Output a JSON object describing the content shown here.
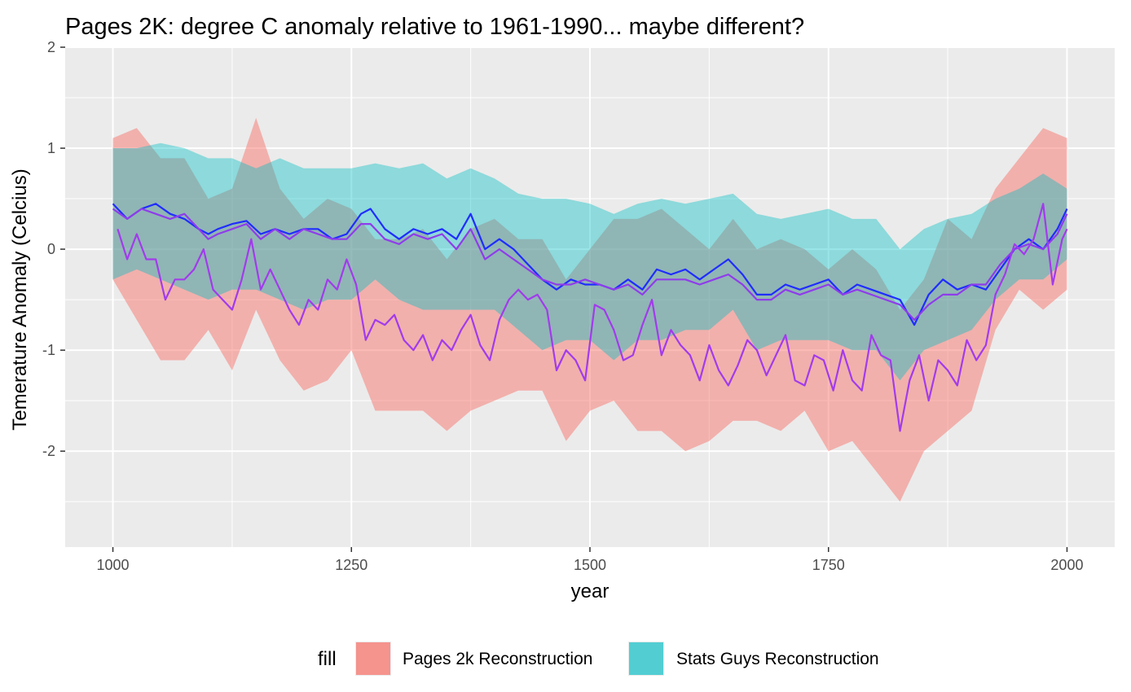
{
  "chart_data": {
    "type": "area",
    "title": "Pages 2K: degree C anomaly relative to 1961-1990... maybe different?",
    "xlabel": "year",
    "ylabel": "Temerature Anomaly (Celcius)",
    "xlim": [
      950,
      2050
    ],
    "ylim": [
      -2.95,
      2.0
    ],
    "x_ticks": [
      1000,
      1250,
      1500,
      1750,
      2000
    ],
    "x_tick_labels": [
      "1000",
      "1250",
      "1500",
      "1750",
      "2000"
    ],
    "y_ticks": [
      -2,
      -1,
      0,
      1,
      2
    ],
    "y_tick_labels": [
      "-2",
      "-1",
      "0",
      "1",
      "2"
    ],
    "grid": true,
    "legend": {
      "position": "bottom",
      "title": "fill",
      "entries": [
        {
          "label": "Pages 2k Reconstruction",
          "color": "#F8766D"
        },
        {
          "label": "Stats Guys Reconstruction",
          "color": "#00BFC4"
        }
      ]
    },
    "bands": [
      {
        "name": "Pages 2k Reconstruction",
        "color": "#F8766D",
        "opacity": 0.5,
        "x": [
          1000,
          1025,
          1050,
          1075,
          1100,
          1125,
          1150,
          1175,
          1200,
          1225,
          1250,
          1275,
          1300,
          1325,
          1350,
          1375,
          1400,
          1425,
          1450,
          1475,
          1500,
          1525,
          1550,
          1575,
          1600,
          1625,
          1650,
          1675,
          1700,
          1725,
          1750,
          1775,
          1800,
          1825,
          1850,
          1875,
          1900,
          1925,
          1950,
          1975,
          2000
        ],
        "lower": [
          -0.3,
          -0.7,
          -1.1,
          -1.1,
          -0.8,
          -1.2,
          -0.6,
          -1.1,
          -1.4,
          -1.3,
          -1.0,
          -1.6,
          -1.6,
          -1.6,
          -1.8,
          -1.6,
          -1.5,
          -1.4,
          -1.4,
          -1.9,
          -1.6,
          -1.5,
          -1.8,
          -1.8,
          -2.0,
          -1.9,
          -1.7,
          -1.7,
          -1.8,
          -1.6,
          -2.0,
          -1.9,
          -2.2,
          -2.5,
          -2.0,
          -1.8,
          -1.6,
          -0.8,
          -0.4,
          -0.6,
          -0.4
        ],
        "upper": [
          1.1,
          1.2,
          0.9,
          0.9,
          0.5,
          0.6,
          1.3,
          0.6,
          0.3,
          0.5,
          0.4,
          0.1,
          0.1,
          0.2,
          -0.1,
          0.2,
          0.3,
          0.1,
          0.1,
          -0.3,
          0.0,
          0.3,
          0.3,
          0.4,
          0.2,
          0.0,
          0.3,
          0.0,
          0.1,
          0.0,
          -0.2,
          0.0,
          -0.2,
          -0.6,
          -0.3,
          0.3,
          0.1,
          0.6,
          0.9,
          1.2,
          1.1
        ]
      },
      {
        "name": "Stats Guys Reconstruction",
        "color": "#00BFC4",
        "opacity": 0.4,
        "x": [
          1000,
          1025,
          1050,
          1075,
          1100,
          1125,
          1150,
          1175,
          1200,
          1225,
          1250,
          1275,
          1300,
          1325,
          1350,
          1375,
          1400,
          1425,
          1450,
          1475,
          1500,
          1525,
          1550,
          1575,
          1600,
          1625,
          1650,
          1675,
          1700,
          1725,
          1750,
          1775,
          1800,
          1825,
          1850,
          1875,
          1900,
          1925,
          1950,
          1975,
          2000
        ],
        "lower": [
          -0.3,
          -0.2,
          -0.3,
          -0.4,
          -0.5,
          -0.4,
          -0.4,
          -0.5,
          -0.6,
          -0.5,
          -0.5,
          -0.3,
          -0.5,
          -0.6,
          -0.6,
          -0.6,
          -0.6,
          -0.8,
          -1.0,
          -0.9,
          -0.9,
          -1.1,
          -0.9,
          -0.9,
          -0.8,
          -0.8,
          -0.6,
          -1.0,
          -0.9,
          -0.9,
          -0.9,
          -1.0,
          -1.0,
          -1.3,
          -1.0,
          -0.9,
          -0.8,
          -0.5,
          -0.3,
          -0.3,
          -0.1
        ],
        "upper": [
          1.0,
          1.0,
          1.05,
          1.0,
          0.9,
          0.9,
          0.8,
          0.9,
          0.8,
          0.8,
          0.8,
          0.85,
          0.8,
          0.85,
          0.7,
          0.8,
          0.7,
          0.55,
          0.5,
          0.5,
          0.45,
          0.35,
          0.45,
          0.5,
          0.45,
          0.5,
          0.55,
          0.35,
          0.3,
          0.35,
          0.4,
          0.3,
          0.3,
          0.0,
          0.2,
          0.3,
          0.35,
          0.5,
          0.6,
          0.75,
          0.6
        ]
      }
    ],
    "series": [
      {
        "color": "#1F2DFF",
        "x": [
          1000,
          1015,
          1030,
          1045,
          1060,
          1075,
          1090,
          1100,
          1110,
          1125,
          1140,
          1155,
          1170,
          1185,
          1200,
          1215,
          1230,
          1245,
          1260,
          1270,
          1285,
          1300,
          1315,
          1330,
          1345,
          1360,
          1375,
          1390,
          1405,
          1420,
          1435,
          1450,
          1465,
          1480,
          1495,
          1510,
          1525,
          1540,
          1555,
          1570,
          1585,
          1600,
          1615,
          1630,
          1645,
          1660,
          1675,
          1690,
          1705,
          1720,
          1735,
          1750,
          1765,
          1780,
          1795,
          1810,
          1825,
          1840,
          1855,
          1870,
          1885,
          1900,
          1915,
          1930,
          1945,
          1960,
          1975,
          1990,
          2000
        ],
        "y": [
          0.45,
          0.3,
          0.4,
          0.45,
          0.35,
          0.3,
          0.2,
          0.15,
          0.2,
          0.25,
          0.28,
          0.15,
          0.2,
          0.15,
          0.2,
          0.2,
          0.1,
          0.15,
          0.35,
          0.4,
          0.2,
          0.1,
          0.2,
          0.15,
          0.2,
          0.1,
          0.35,
          0.0,
          0.1,
          0.0,
          -0.15,
          -0.3,
          -0.4,
          -0.3,
          -0.35,
          -0.35,
          -0.4,
          -0.3,
          -0.4,
          -0.2,
          -0.25,
          -0.2,
          -0.3,
          -0.2,
          -0.1,
          -0.25,
          -0.45,
          -0.45,
          -0.35,
          -0.4,
          -0.35,
          -0.3,
          -0.45,
          -0.35,
          -0.4,
          -0.45,
          -0.5,
          -0.75,
          -0.45,
          -0.3,
          -0.4,
          -0.35,
          -0.4,
          -0.2,
          0.0,
          0.1,
          0.0,
          0.2,
          0.4
        ]
      },
      {
        "color": "#8F3CEB",
        "x": [
          1000,
          1015,
          1030,
          1045,
          1060,
          1075,
          1090,
          1100,
          1110,
          1125,
          1140,
          1155,
          1170,
          1185,
          1200,
          1215,
          1230,
          1245,
          1260,
          1270,
          1285,
          1300,
          1315,
          1330,
          1345,
          1360,
          1375,
          1390,
          1405,
          1420,
          1435,
          1450,
          1465,
          1480,
          1495,
          1510,
          1525,
          1540,
          1555,
          1570,
          1585,
          1600,
          1615,
          1630,
          1645,
          1660,
          1675,
          1690,
          1705,
          1720,
          1735,
          1750,
          1765,
          1780,
          1795,
          1810,
          1825,
          1840,
          1855,
          1870,
          1885,
          1900,
          1915,
          1930,
          1945,
          1960,
          1975,
          1990,
          2000
        ],
        "y": [
          0.4,
          0.3,
          0.4,
          0.35,
          0.3,
          0.35,
          0.2,
          0.1,
          0.15,
          0.2,
          0.25,
          0.1,
          0.2,
          0.1,
          0.2,
          0.15,
          0.1,
          0.1,
          0.25,
          0.25,
          0.1,
          0.05,
          0.15,
          0.1,
          0.15,
          0.0,
          0.2,
          -0.1,
          0.0,
          -0.1,
          -0.2,
          -0.3,
          -0.35,
          -0.35,
          -0.3,
          -0.35,
          -0.4,
          -0.35,
          -0.45,
          -0.3,
          -0.3,
          -0.3,
          -0.35,
          -0.3,
          -0.25,
          -0.35,
          -0.5,
          -0.5,
          -0.4,
          -0.45,
          -0.4,
          -0.35,
          -0.45,
          -0.4,
          -0.45,
          -0.5,
          -0.55,
          -0.7,
          -0.55,
          -0.45,
          -0.45,
          -0.35,
          -0.35,
          -0.15,
          0.0,
          0.05,
          0.0,
          0.15,
          0.35
        ]
      },
      {
        "color": "#A23BEC",
        "x": [
          1005,
          1015,
          1025,
          1035,
          1045,
          1055,
          1065,
          1075,
          1085,
          1095,
          1105,
          1115,
          1125,
          1135,
          1145,
          1155,
          1165,
          1175,
          1185,
          1195,
          1205,
          1215,
          1225,
          1235,
          1245,
          1255,
          1265,
          1275,
          1285,
          1295,
          1305,
          1315,
          1325,
          1335,
          1345,
          1355,
          1365,
          1375,
          1385,
          1395,
          1405,
          1415,
          1425,
          1435,
          1445,
          1455,
          1465,
          1475,
          1485,
          1495,
          1505,
          1515,
          1525,
          1535,
          1545,
          1555,
          1565,
          1575,
          1585,
          1595,
          1605,
          1615,
          1625,
          1635,
          1645,
          1655,
          1665,
          1675,
          1685,
          1695,
          1705,
          1715,
          1725,
          1735,
          1745,
          1755,
          1765,
          1775,
          1785,
          1795,
          1805,
          1815,
          1825,
          1835,
          1845,
          1855,
          1865,
          1875,
          1885,
          1895,
          1905,
          1915,
          1925,
          1935,
          1945,
          1955,
          1965,
          1975,
          1985,
          1995,
          2000
        ],
        "y": [
          0.2,
          -0.1,
          0.15,
          -0.1,
          -0.1,
          -0.5,
          -0.3,
          -0.3,
          -0.2,
          0.0,
          -0.4,
          -0.5,
          -0.6,
          -0.3,
          0.1,
          -0.4,
          -0.2,
          -0.4,
          -0.6,
          -0.75,
          -0.5,
          -0.6,
          -0.3,
          -0.4,
          -0.1,
          -0.35,
          -0.9,
          -0.7,
          -0.75,
          -0.65,
          -0.9,
          -1.0,
          -0.85,
          -1.1,
          -0.9,
          -1.0,
          -0.8,
          -0.65,
          -0.95,
          -1.1,
          -0.7,
          -0.5,
          -0.4,
          -0.5,
          -0.45,
          -0.6,
          -1.2,
          -1.0,
          -1.1,
          -1.3,
          -0.55,
          -0.6,
          -0.8,
          -1.1,
          -1.05,
          -0.75,
          -0.5,
          -1.05,
          -0.8,
          -0.95,
          -1.05,
          -1.3,
          -0.95,
          -1.2,
          -1.35,
          -1.15,
          -0.9,
          -1.0,
          -1.25,
          -1.05,
          -0.85,
          -1.3,
          -1.35,
          -1.05,
          -1.1,
          -1.4,
          -1.0,
          -1.3,
          -1.4,
          -0.85,
          -1.05,
          -1.1,
          -1.8,
          -1.3,
          -1.05,
          -1.5,
          -1.1,
          -1.2,
          -1.35,
          -0.9,
          -1.1,
          -0.95,
          -0.45,
          -0.25,
          0.05,
          -0.05,
          0.1,
          0.45,
          -0.35,
          0.1,
          0.2
        ]
      }
    ]
  }
}
